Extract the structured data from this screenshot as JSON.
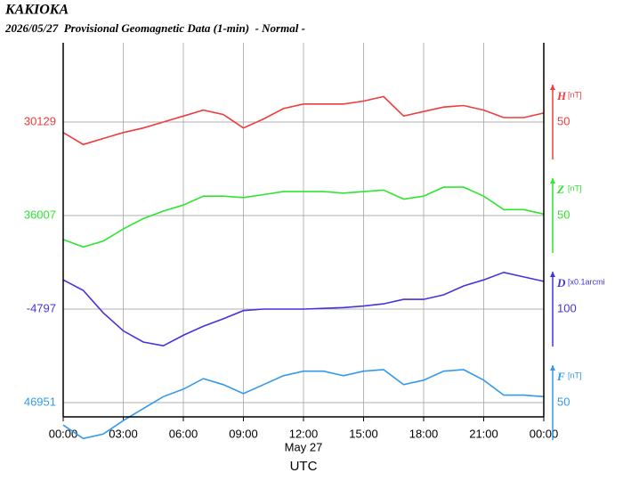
{
  "chart_data": {
    "type": "line",
    "title": "KAKIOKA",
    "subtitle": "2026/05/27  Provisional Geomagnetic Data (1-min)  - Normal -",
    "x_label": "May 27",
    "x_axis_title": "UTC",
    "x": [
      0,
      1,
      2,
      3,
      4,
      5,
      6,
      7,
      8,
      9,
      10,
      11,
      12,
      13,
      14,
      15,
      16,
      17,
      18,
      19,
      20,
      21,
      22,
      23,
      24
    ],
    "xlim": [
      0,
      24
    ],
    "xticks": [
      {
        "value": 0,
        "label": "00:00"
      },
      {
        "value": 3,
        "label": "03:00"
      },
      {
        "value": 6,
        "label": "06:00"
      },
      {
        "value": 9,
        "label": "09:00"
      },
      {
        "value": 12,
        "label": "12:00"
      },
      {
        "value": 15,
        "label": "15:00"
      },
      {
        "value": 18,
        "label": "18:00"
      },
      {
        "value": 21,
        "label": "21:00"
      },
      {
        "value": 24,
        "label": "00:00"
      }
    ],
    "grid": true,
    "series": [
      {
        "name": "H",
        "unit": "[nT]",
        "color": "#f03c3c",
        "base": 30129,
        "scale": 50,
        "values": [
          30122,
          30114,
          30118,
          30122,
          30125,
          30129,
          30133,
          30137,
          30134,
          30125,
          30131,
          30138,
          30141,
          30141,
          30141,
          30143,
          30146,
          30133,
          30136,
          30139,
          30140,
          30137,
          30132,
          30132,
          30135
        ]
      },
      {
        "name": "Z",
        "unit": "[nT]",
        "color": "#2ee62e",
        "base": 36007,
        "scale": 50,
        "values": [
          35991,
          35986,
          35990,
          35998,
          36005,
          36010,
          36014,
          36020,
          36020,
          36019,
          36021,
          36023,
          36023,
          36023,
          36022,
          36023,
          36024,
          36018,
          36020,
          36026,
          36026,
          36020,
          36011,
          36011,
          36008
        ]
      },
      {
        "name": "D",
        "unit": "[x0.1arcmi",
        "color": "#4433dd",
        "base": -4797,
        "scale": 100,
        "values": [
          -4758,
          -4772,
          -4802,
          -4826,
          -4841,
          -4846,
          -4832,
          -4820,
          -4810,
          -4799,
          -4797,
          -4797,
          -4797,
          -4796,
          -4795,
          -4793,
          -4790,
          -4784,
          -4784,
          -4778,
          -4766,
          -4758,
          -4748,
          -4754,
          -4760
        ]
      },
      {
        "name": "F",
        "unit": "[nT]",
        "color": "#3399ee",
        "base": 46951,
        "scale": 50,
        "values": [
          46936,
          46927,
          46930,
          46939,
          46947,
          46955,
          46960,
          46967,
          46963,
          46957,
          46963,
          46969,
          46972,
          46972,
          46969,
          46972,
          46973,
          46963,
          46966,
          46972,
          46973,
          46966,
          46956,
          46956,
          46955
        ]
      }
    ]
  }
}
